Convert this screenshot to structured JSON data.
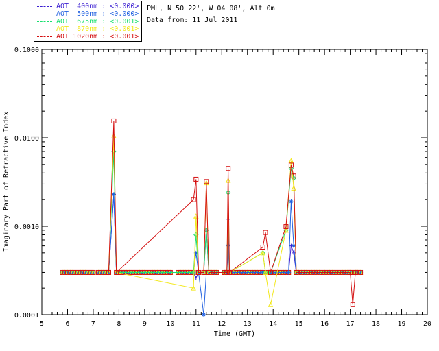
{
  "header": {
    "site": "PML, N 50 22', W 04 08', Alt 0m",
    "date": "Data from: 11 Jul 2011"
  },
  "legend": [
    {
      "label": "AOT  400nm : <0.000>",
      "color": "#3b1fd1"
    },
    {
      "label": "AOT  500nm : <0.000>",
      "color": "#1f5fe0"
    },
    {
      "label": "AOT  675nm : <0.001>",
      "color": "#19e06f"
    },
    {
      "label": "AOT  870nm : <0.001>",
      "color": "#f2e81c"
    },
    {
      "label": "AOT 1020nm : <0.001>",
      "color": "#d40f10"
    }
  ],
  "chart_data": {
    "type": "line",
    "xlabel": "Time (GMT)",
    "ylabel": "Imaginary Part of Refractive Index",
    "xlim": [
      5,
      20
    ],
    "ylim": [
      0.0001,
      0.1
    ],
    "yscale": "log",
    "x_ticks": [
      "5",
      "6",
      "7",
      "8",
      "9",
      "10",
      "11",
      "12",
      "13",
      "14",
      "15",
      "16",
      "17",
      "18",
      "19",
      "20"
    ],
    "y_ticks": [
      {
        "value": 0.0001,
        "label": "0.0001"
      },
      {
        "value": 0.001,
        "label": "0.0010"
      },
      {
        "value": 0.01,
        "label": "0.0100"
      },
      {
        "value": 0.1,
        "label": "0.1000"
      }
    ],
    "series": [
      {
        "name": "AOT  400nm : <0.000>",
        "color": "#3b1fd1",
        "marker": "plus",
        "x": [
          7.6,
          7.8,
          7.9,
          10.9,
          11.0,
          11.1,
          11.3,
          11.4,
          11.5,
          12.2,
          12.25,
          12.3,
          13.6,
          13.7,
          13.9,
          14.6,
          14.7,
          14.8,
          14.9
        ],
        "y": [
          0.0003,
          0.0023,
          0.0003,
          0.0003,
          0.00026,
          0.0003,
          0.0003,
          0.0009,
          0.0003,
          0.0003,
          0.0012,
          0.0003,
          0.0003,
          0.0003,
          0.0003,
          0.0003,
          0.0006,
          0.0005,
          0.0003
        ]
      },
      {
        "name": "AOT  500nm : <0.000>",
        "color": "#1f5fe0",
        "marker": "star",
        "x": [
          7.6,
          7.8,
          7.9,
          10.9,
          11.0,
          11.1,
          11.3,
          11.4,
          11.5,
          12.2,
          12.25,
          12.3,
          13.6,
          13.7,
          13.9,
          14.6,
          14.7,
          14.8,
          14.9
        ],
        "y": [
          0.0003,
          0.0023,
          0.0003,
          0.0003,
          0.0005,
          0.0003,
          0.0001,
          0.0003,
          0.0003,
          0.0003,
          0.0006,
          0.0003,
          0.0003,
          0.0003,
          0.0003,
          0.0003,
          0.0019,
          0.0006,
          0.0003
        ]
      },
      {
        "name": "AOT  675nm : <0.001>",
        "color": "#19e06f",
        "marker": "diamond",
        "x": [
          7.6,
          7.8,
          7.9,
          10.9,
          11.0,
          11.1,
          11.3,
          11.4,
          11.5,
          12.2,
          12.25,
          12.3,
          13.6,
          13.7,
          13.9,
          14.5,
          14.7,
          14.8,
          14.9
        ],
        "y": [
          0.0003,
          0.007,
          0.0003,
          0.0003,
          0.0008,
          0.0003,
          0.0003,
          0.0009,
          0.0003,
          0.0003,
          0.0024,
          0.0003,
          0.0005,
          0.0003,
          0.0003,
          0.0009,
          0.0045,
          0.0035,
          0.0003
        ]
      },
      {
        "name": "AOT  870nm : <0.001>",
        "color": "#f2e81c",
        "marker": "triangle",
        "x": [
          7.6,
          7.8,
          7.9,
          10.9,
          11.0,
          11.1,
          11.3,
          11.4,
          11.5,
          12.2,
          12.25,
          12.3,
          13.6,
          13.7,
          13.9,
          14.5,
          14.7,
          14.8,
          14.9
        ],
        "y": [
          0.0003,
          0.0105,
          0.0003,
          0.0002,
          0.0013,
          0.0003,
          0.0003,
          0.0031,
          0.0003,
          0.0003,
          0.0033,
          0.0003,
          0.0005,
          0.0003,
          0.00013,
          0.0009,
          0.0055,
          0.0027,
          0.0003
        ]
      },
      {
        "name": "AOT 1020nm : <0.001>",
        "color": "#d40f10",
        "marker": "square",
        "x": [
          7.6,
          7.8,
          7.9,
          10.9,
          11.0,
          11.1,
          11.3,
          11.4,
          11.5,
          12.2,
          12.25,
          12.3,
          13.6,
          13.7,
          13.9,
          14.5,
          14.7,
          14.8,
          14.9,
          17.0,
          17.1,
          17.2
        ],
        "y": [
          0.0003,
          0.0155,
          0.0003,
          0.002,
          0.0034,
          0.0003,
          0.0003,
          0.0032,
          0.0003,
          0.0003,
          0.0045,
          0.0003,
          0.00058,
          0.00085,
          0.0003,
          0.00099,
          0.0049,
          0.0037,
          0.0003,
          0.0003,
          0.00013,
          0.0003
        ]
      }
    ],
    "baseline_segments": [
      [
        5.8,
        7.0
      ],
      [
        7.2,
        7.6
      ],
      [
        8.0,
        10.0
      ],
      [
        10.3,
        10.9
      ],
      [
        11.5,
        11.8
      ],
      [
        12.1,
        12.3
      ],
      [
        12.4,
        13.6
      ],
      [
        13.8,
        14.6
      ],
      [
        14.9,
        17.0
      ],
      [
        17.2,
        17.4
      ]
    ],
    "baseline_value": 0.0003,
    "grid": false
  }
}
